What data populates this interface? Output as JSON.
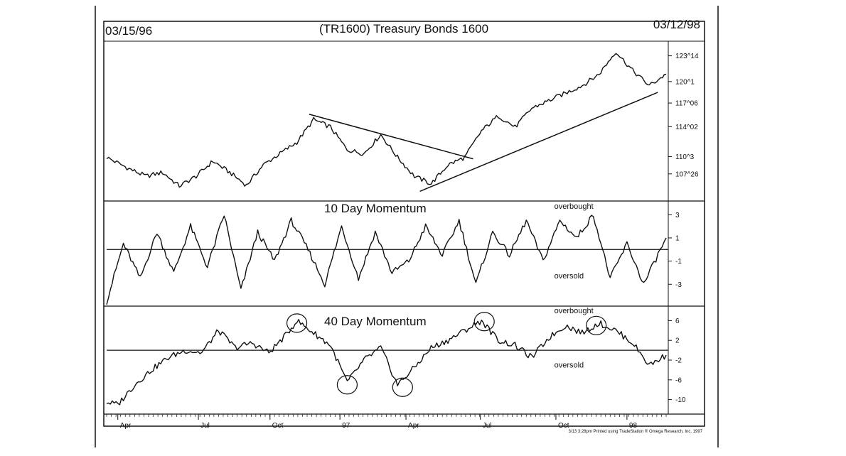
{
  "header": {
    "start_date": "03/15/96",
    "title": "(TR1600) Treasury Bonds 1600",
    "end_date": "03/12/98"
  },
  "footer": "3/13 3:28pm Printed using TradeStation ® Omega Research, Inc. 1997",
  "x_axis": {
    "months": [
      {
        "label": "Apr",
        "t": 0.02
      },
      {
        "label": "Jul",
        "t": 0.164
      },
      {
        "label": "Oct",
        "t": 0.292
      },
      {
        "label": "97",
        "t": 0.417
      },
      {
        "label": "Apr",
        "t": 0.535
      },
      {
        "label": "Jul",
        "t": 0.668
      },
      {
        "label": "Oct",
        "t": 0.803
      },
      {
        "label": "98",
        "t": 0.93
      }
    ]
  },
  "chart_data": [
    {
      "type": "line",
      "panel": "price",
      "title": "(TR1600) Treasury Bonds 1600",
      "y_tick_labels": [
        "123^14",
        "120^1",
        "117^06",
        "114^02",
        "110^3",
        "107^26"
      ],
      "y_tick_values": [
        123.44,
        120.03,
        117.19,
        114.06,
        110.09,
        107.81
      ],
      "ylim": [
        104.5,
        125.0
      ],
      "x": [
        0.0,
        0.04,
        0.07,
        0.1,
        0.13,
        0.16,
        0.19,
        0.22,
        0.25,
        0.28,
        0.31,
        0.34,
        0.37,
        0.4,
        0.43,
        0.46,
        0.49,
        0.52,
        0.55,
        0.58,
        0.61,
        0.64,
        0.67,
        0.7,
        0.73,
        0.76,
        0.79,
        0.82,
        0.85,
        0.88,
        0.91,
        0.94,
        0.97,
        1.0
      ],
      "values": [
        110.0,
        108.5,
        107.5,
        108.0,
        106.2,
        107.5,
        109.5,
        108.0,
        106.3,
        109.0,
        110.5,
        112.0,
        115.0,
        114.0,
        111.0,
        110.5,
        113.0,
        110.0,
        107.5,
        106.5,
        109.0,
        110.0,
        113.5,
        115.5,
        114.0,
        116.5,
        117.5,
        118.5,
        119.5,
        121.0,
        124.0,
        121.5,
        119.5,
        121.0
      ],
      "annotations": [
        {
          "type": "trendline",
          "label": "downtrend",
          "points": [
            [
              0.362,
              115.7
            ],
            [
              0.655,
              109.8
            ]
          ]
        },
        {
          "type": "trendline",
          "label": "uptrend",
          "points": [
            [
              0.56,
              105.5
            ],
            [
              0.985,
              118.6
            ]
          ]
        }
      ]
    },
    {
      "type": "line",
      "panel": "momentum10",
      "title": "10 Day Momentum",
      "y_tick_labels": [
        "3",
        "1",
        "-1",
        "-3"
      ],
      "y_tick_values": [
        3,
        1,
        -1,
        -3
      ],
      "ylim": [
        -4.7,
        4.0
      ],
      "zero_line": 0,
      "annotations": [
        {
          "text": "overbought",
          "x": 0.8,
          "y": 3.5
        },
        {
          "text": "oversold",
          "x": 0.8,
          "y": -2.5
        }
      ],
      "x": [
        0.0,
        0.03,
        0.06,
        0.09,
        0.12,
        0.15,
        0.18,
        0.21,
        0.24,
        0.27,
        0.3,
        0.33,
        0.36,
        0.39,
        0.42,
        0.45,
        0.48,
        0.51,
        0.54,
        0.57,
        0.6,
        0.63,
        0.66,
        0.69,
        0.72,
        0.75,
        0.78,
        0.81,
        0.84,
        0.87,
        0.9,
        0.93,
        0.96,
        1.0
      ],
      "values": [
        -4.5,
        0.5,
        -2.5,
        1.5,
        -2.0,
        2.0,
        -1.5,
        3.0,
        -3.5,
        1.5,
        -1.0,
        2.5,
        0.0,
        -3.0,
        2.0,
        -2.5,
        1.5,
        -2.0,
        -1.0,
        2.0,
        -0.5,
        2.5,
        -3.0,
        1.5,
        -0.5,
        2.5,
        -1.0,
        2.5,
        1.0,
        3.0,
        -2.5,
        0.5,
        -3.0,
        1.0
      ]
    },
    {
      "type": "line",
      "panel": "momentum40",
      "title": "40 Day Momentum",
      "y_tick_labels": [
        "6",
        "2",
        "-2",
        "-6",
        "-10"
      ],
      "y_tick_values": [
        6,
        2,
        -2,
        -6,
        -10
      ],
      "ylim": [
        -12.5,
        8.5
      ],
      "zero_line": 0,
      "annotations": [
        {
          "text": "overbought",
          "x": 0.8,
          "y": 7.5
        },
        {
          "text": "oversold",
          "x": 0.8,
          "y": -3.5
        },
        {
          "type": "circle",
          "x": 0.34,
          "y": 5.5
        },
        {
          "type": "circle",
          "x": 0.43,
          "y": -7.0
        },
        {
          "type": "circle",
          "x": 0.529,
          "y": -7.5
        },
        {
          "type": "circle",
          "x": 0.675,
          "y": 5.8
        },
        {
          "type": "circle",
          "x": 0.875,
          "y": 5.0
        }
      ],
      "x": [
        0.0,
        0.02,
        0.05,
        0.08,
        0.11,
        0.14,
        0.17,
        0.2,
        0.23,
        0.26,
        0.29,
        0.32,
        0.34,
        0.37,
        0.4,
        0.43,
        0.46,
        0.49,
        0.52,
        0.55,
        0.58,
        0.61,
        0.64,
        0.67,
        0.7,
        0.73,
        0.76,
        0.79,
        0.82,
        0.85,
        0.88,
        0.91,
        0.94,
        0.97,
        1.0
      ],
      "values": [
        -10.5,
        -11.0,
        -7.0,
        -4.0,
        -1.5,
        0.0,
        -0.5,
        4.0,
        0.5,
        1.5,
        -0.5,
        3.0,
        6.0,
        3.5,
        1.0,
        -6.5,
        -2.0,
        0.5,
        -7.0,
        -3.5,
        0.5,
        2.0,
        4.0,
        6.0,
        2.0,
        1.0,
        -1.5,
        2.5,
        5.0,
        3.5,
        5.5,
        4.0,
        1.5,
        -3.0,
        -1.0
      ]
    }
  ]
}
